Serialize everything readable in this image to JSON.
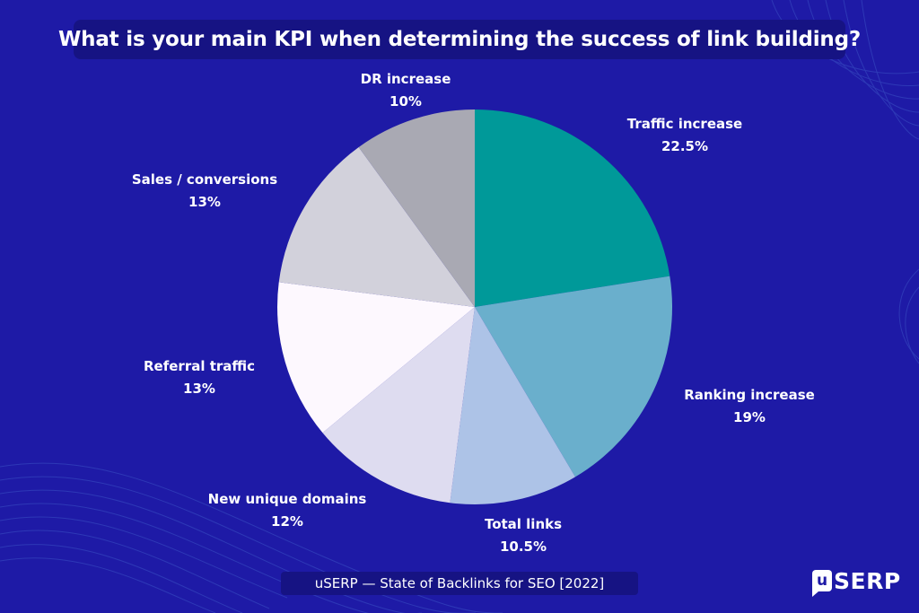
{
  "header": {
    "title": "What is your main KPI when determining the success of link building?"
  },
  "chart_data": {
    "type": "pie",
    "title": "What is your main KPI when determining the success of link building?",
    "start_angle_deg": 0,
    "direction": "clockwise",
    "legend": "none",
    "slices": [
      {
        "label": "Traffic increase",
        "value": 22.5,
        "display": "22.5%",
        "color": "#009999"
      },
      {
        "label": "Ranking increase",
        "value": 19,
        "display": "19%",
        "color": "#6aafcc"
      },
      {
        "label": "Total links",
        "value": 10.5,
        "display": "10.5%",
        "color": "#adc3e7"
      },
      {
        "label": "New unique domains",
        "value": 12,
        "display": "12%",
        "color": "#dedcf0"
      },
      {
        "label": "Referral traffic",
        "value": 13,
        "display": "13%",
        "color": "#fdf8fe"
      },
      {
        "label": "Sales / conversions",
        "value": 13,
        "display": "13%",
        "color": "#d2d1db"
      },
      {
        "label": "DR increase",
        "value": 10,
        "display": "10%",
        "color": "#a9a9b3"
      }
    ]
  },
  "footer": {
    "source": "uSERP — State of Backlinks for SEO [2022]",
    "brand_mark": "u",
    "brand_text": "SERP"
  }
}
